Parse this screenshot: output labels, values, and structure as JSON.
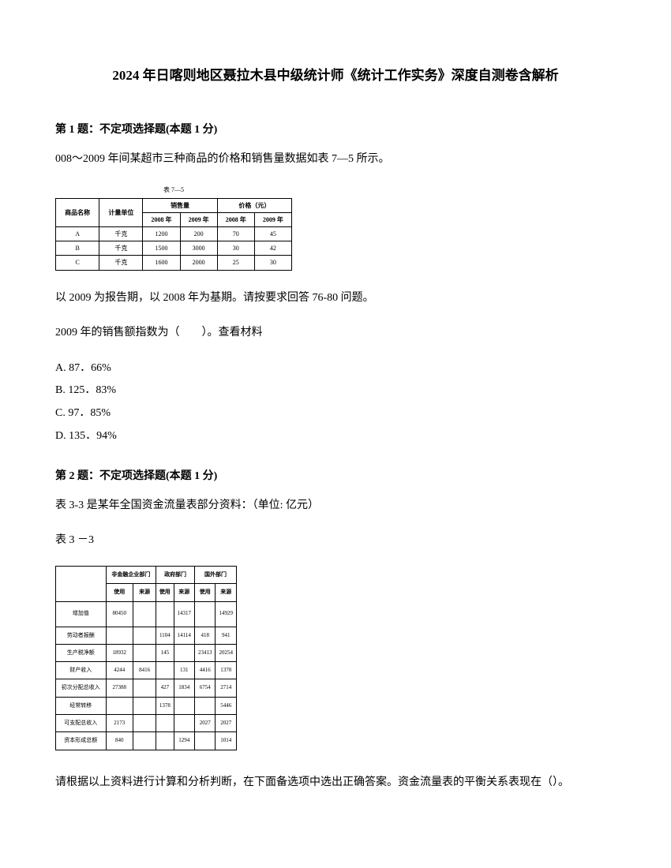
{
  "title": "2024 年日喀则地区聂拉木县中级统计师《统计工作实务》深度自测卷含解析",
  "q1": {
    "header": "第 1 题：不定项选择题(本题 1 分)",
    "text_a": "008～2009 年间某超市三种商品的价格和销售量数据如表 7—5 所示。",
    "text_b": "以 2009 为报告期，以 2008 年为基期。请按要求回答 76-80 问题。",
    "text_c": "2009 年的销售额指数为（　　）。查看材料",
    "optA": "A. 87．66%",
    "optB": "B. 125．83%",
    "optC": "C. 97．85%",
    "optD": "D. 135．94%",
    "table": {
      "caption": "表 7—5",
      "h_item": "商品名称",
      "h_unit": "计量单位",
      "h_sales": "销售量",
      "h_price": "价格（元）",
      "h_2008": "2008 年",
      "h_2009": "2009 年",
      "h_2008b": "2008 年",
      "h_2009b": "2009 年",
      "r1": [
        "A",
        "千克",
        "1200",
        "200",
        "70",
        "45"
      ],
      "r2": [
        "B",
        "千克",
        "1500",
        "3000",
        "30",
        "42"
      ],
      "r3": [
        "C",
        "千克",
        "1600",
        "2000",
        "25",
        "30"
      ]
    }
  },
  "q2": {
    "header": "第 2 题：不定项选择题(本题 1 分)",
    "text_a": "表 3-3 是某年全国资金流量表部分资料：（单位: 亿元）",
    "text_b": "表 3 －3",
    "text_c": "请根据以上资料进行计算和分析判断，在下面备选项中选出正确答案。资金流量表的平衡关系表现在（）。",
    "table": {
      "h_blank": "",
      "h_nonfin": "非金融企业部门",
      "h_gov": "政府部门",
      "h_foreign": "国外部门",
      "h_use": "使用",
      "h_source": "来源",
      "h_use2": "使用",
      "h_source2": "来源",
      "h_use3": "使用",
      "h_source3": "来源",
      "rows": [
        {
          "label": "增加值",
          "c": [
            "",
            "80450",
            "",
            "",
            "14317",
            "",
            "",
            "14929"
          ]
        },
        {
          "label": "劳动者报酬",
          "c": [
            "",
            "",
            "",
            "1104",
            "14114",
            "418",
            "",
            "941"
          ]
        },
        {
          "label": "生产税净额",
          "c": [
            "18932",
            "",
            "",
            "145",
            "",
            "23413",
            "20254",
            ""
          ]
        },
        {
          "label": "财产收入",
          "c": [
            "4244",
            "8416",
            "",
            "131",
            "",
            "4416",
            "",
            "1370"
          ]
        },
        {
          "label": "初次分配总收入",
          "c": [
            "",
            "27388",
            "",
            "427",
            "1834",
            "6754",
            "",
            "2714"
          ]
        },
        {
          "label": "经常转移",
          "c": [
            "",
            "",
            "",
            "1378",
            "",
            "",
            "5446",
            ""
          ]
        },
        {
          "label": "可支配总收入",
          "c": [
            "",
            "2173",
            "",
            "",
            "",
            "",
            "2027",
            "2027"
          ]
        },
        {
          "label": "资本形成总额",
          "c": [
            "",
            "840",
            "",
            "",
            "1294",
            "",
            "1014",
            ""
          ]
        }
      ]
    }
  }
}
